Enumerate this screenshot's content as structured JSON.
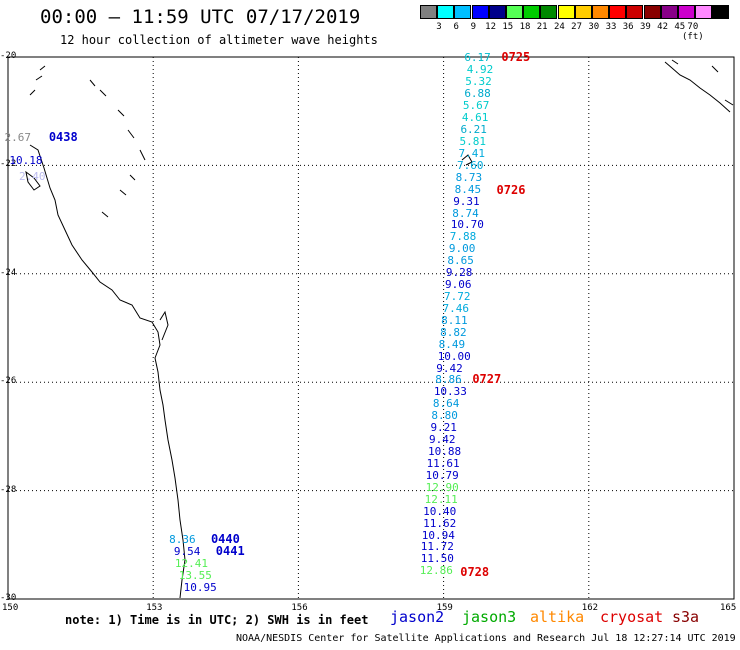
{
  "title": "00:00 – 11:59 UTC 07/17/2019",
  "subtitle": "12 hour collection of altimeter wave heights",
  "colorbar": {
    "colors": [
      "#808080",
      "#00ffff",
      "#00bfff",
      "#0000ff",
      "#00008b",
      "#55ff55",
      "#00cc00",
      "#008800",
      "#ffff00",
      "#ffcc00",
      "#ff8800",
      "#ff0000",
      "#cc0000",
      "#880000",
      "#880088",
      "#cc00cc",
      "#ff88ff",
      "#000000"
    ],
    "labels": [
      "3",
      "6",
      "9",
      "12",
      "15",
      "18",
      "21",
      "24",
      "27",
      "30",
      "33",
      "36",
      "39",
      "42",
      "45",
      "70 (ft)"
    ]
  },
  "map": {
    "lon_range": [
      150,
      165
    ],
    "lat_range": [
      -20,
      -30
    ],
    "lon_ticks": [
      "150",
      "153",
      "156",
      "159",
      "162",
      "165"
    ],
    "lat_ticks": [
      "-20",
      "-22",
      "-24",
      "-26",
      "-28",
      "-30"
    ]
  },
  "wave_heights": [
    {
      "v": "6.17",
      "lat": -20.0,
      "lon": 159.8,
      "c": "#00bbcc"
    },
    {
      "v": "4.92",
      "lat": -20.23,
      "lon": 159.85,
      "c": "#00cccc"
    },
    {
      "v": "5.32",
      "lat": -20.45,
      "lon": 159.82,
      "c": "#00cccc"
    },
    {
      "v": "6.88",
      "lat": -20.67,
      "lon": 159.8,
      "c": "#00aacc"
    },
    {
      "v": "5.67",
      "lat": -20.89,
      "lon": 159.77,
      "c": "#00cccc"
    },
    {
      "v": "4.61",
      "lat": -21.11,
      "lon": 159.75,
      "c": "#00cccc"
    },
    {
      "v": "6.21",
      "lat": -21.33,
      "lon": 159.72,
      "c": "#00aacc"
    },
    {
      "v": "5.81",
      "lat": -21.55,
      "lon": 159.7,
      "c": "#00cccc"
    },
    {
      "v": "7.41",
      "lat": -21.77,
      "lon": 159.68,
      "c": "#00aadd"
    },
    {
      "v": "7.60",
      "lat": -21.99,
      "lon": 159.65,
      "c": "#00aadd"
    },
    {
      "v": "8.73",
      "lat": -22.21,
      "lon": 159.62,
      "c": "#0099dd"
    },
    {
      "v": "8.45",
      "lat": -22.43,
      "lon": 159.6,
      "c": "#0099dd"
    },
    {
      "v": "9.31",
      "lat": -22.65,
      "lon": 159.57,
      "c": "#0000cc"
    },
    {
      "v": "8.74",
      "lat": -22.87,
      "lon": 159.55,
      "c": "#0099dd"
    },
    {
      "v": "10.70",
      "lat": -23.09,
      "lon": 159.52,
      "c": "#0000cc"
    },
    {
      "v": "7.88",
      "lat": -23.31,
      "lon": 159.5,
      "c": "#00aadd"
    },
    {
      "v": "9.00",
      "lat": -23.53,
      "lon": 159.48,
      "c": "#0099dd"
    },
    {
      "v": "8.65",
      "lat": -23.75,
      "lon": 159.45,
      "c": "#0099dd"
    },
    {
      "v": "9.28",
      "lat": -23.97,
      "lon": 159.42,
      "c": "#0000cc"
    },
    {
      "v": "9.06",
      "lat": -24.19,
      "lon": 159.4,
      "c": "#0000cc"
    },
    {
      "v": "7.72",
      "lat": -24.41,
      "lon": 159.38,
      "c": "#00aadd"
    },
    {
      "v": "7.46",
      "lat": -24.63,
      "lon": 159.35,
      "c": "#00aadd"
    },
    {
      "v": "8.11",
      "lat": -24.85,
      "lon": 159.32,
      "c": "#0099dd"
    },
    {
      "v": "8.82",
      "lat": -25.07,
      "lon": 159.3,
      "c": "#0099dd"
    },
    {
      "v": "8.49",
      "lat": -25.29,
      "lon": 159.27,
      "c": "#0099dd"
    },
    {
      "v": "10.00",
      "lat": -25.51,
      "lon": 159.25,
      "c": "#0000cc"
    },
    {
      "v": "9.42",
      "lat": -25.73,
      "lon": 159.22,
      "c": "#0000cc"
    },
    {
      "v": "8.86",
      "lat": -25.95,
      "lon": 159.2,
      "c": "#0099dd"
    },
    {
      "v": "10.33",
      "lat": -26.17,
      "lon": 159.17,
      "c": "#0000cc"
    },
    {
      "v": "8.64",
      "lat": -26.39,
      "lon": 159.15,
      "c": "#0099dd"
    },
    {
      "v": "8.80",
      "lat": -26.61,
      "lon": 159.12,
      "c": "#0099dd"
    },
    {
      "v": "9.21",
      "lat": -26.83,
      "lon": 159.1,
      "c": "#0000cc"
    },
    {
      "v": "9.42",
      "lat": -27.05,
      "lon": 159.07,
      "c": "#0000cc"
    },
    {
      "v": "10.88",
      "lat": -27.27,
      "lon": 159.05,
      "c": "#0000cc"
    },
    {
      "v": "11.61",
      "lat": -27.49,
      "lon": 159.02,
      "c": "#0000cc"
    },
    {
      "v": "10.79",
      "lat": -27.71,
      "lon": 159.0,
      "c": "#0000cc"
    },
    {
      "v": "12.90",
      "lat": -27.93,
      "lon": 159.0,
      "c": "#55ee55"
    },
    {
      "v": "12.11",
      "lat": -28.15,
      "lon": 158.98,
      "c": "#55ee55"
    },
    {
      "v": "10.40",
      "lat": -28.37,
      "lon": 158.95,
      "c": "#0000cc"
    },
    {
      "v": "11.62",
      "lat": -28.59,
      "lon": 158.95,
      "c": "#0000cc"
    },
    {
      "v": "10.94",
      "lat": -28.81,
      "lon": 158.92,
      "c": "#0000cc"
    },
    {
      "v": "11.72",
      "lat": -29.03,
      "lon": 158.9,
      "c": "#0000cc"
    },
    {
      "v": "11.50",
      "lat": -29.25,
      "lon": 158.9,
      "c": "#0000cc"
    },
    {
      "v": "12.86",
      "lat": -29.47,
      "lon": 158.88,
      "c": "#55ee55"
    },
    {
      "v": "2.67",
      "lat": -21.47,
      "lon": 150.3,
      "c": "#888888"
    },
    {
      "v": "10.18",
      "lat": -21.9,
      "lon": 150.4,
      "c": "#0000cc"
    },
    {
      "v": "2.40",
      "lat": -22.2,
      "lon": 150.6,
      "c": "#bbbbee"
    },
    {
      "v": "8.36",
      "lat": -28.9,
      "lon": 153.7,
      "c": "#0099dd"
    },
    {
      "v": "9.54",
      "lat": -29.12,
      "lon": 153.8,
      "c": "#0000cc"
    },
    {
      "v": "12.41",
      "lat": -29.34,
      "lon": 153.82,
      "c": "#55ee55"
    },
    {
      "v": "13.55",
      "lat": -29.56,
      "lon": 153.9,
      "c": "#55ee55"
    },
    {
      "v": "10.95",
      "lat": -29.78,
      "lon": 154.0,
      "c": "#0000cc"
    }
  ],
  "pass_times": [
    {
      "t": "0725",
      "lat": -20.0,
      "lon": 160.4,
      "c": "#dd0000"
    },
    {
      "t": "0726",
      "lat": -22.45,
      "lon": 160.3,
      "c": "#dd0000"
    },
    {
      "t": "0727",
      "lat": -25.95,
      "lon": 159.8,
      "c": "#dd0000"
    },
    {
      "t": "0728",
      "lat": -29.5,
      "lon": 159.55,
      "c": "#dd0000"
    },
    {
      "t": "0438",
      "lat": -21.47,
      "lon": 151.05,
      "c": "#0000cc"
    },
    {
      "t": "0440",
      "lat": -28.9,
      "lon": 154.4,
      "c": "#0000cc"
    },
    {
      "t": "0441",
      "lat": -29.12,
      "lon": 154.5,
      "c": "#0000cc"
    }
  ],
  "note": "note: 1) Time is in UTC; 2) SWH is in feet",
  "satellites": [
    {
      "name": "jason2",
      "color": "#0000cc"
    },
    {
      "name": "jason3",
      "color": "#00aa00"
    },
    {
      "name": "altika",
      "color": "#ff8800"
    },
    {
      "name": "cryosat",
      "color": "#dd0000"
    },
    {
      "name": "s3a",
      "color": "#880000"
    }
  ],
  "credit": "NOAA/NESDIS Center for Satellite Applications and Research   Jul 18 12:27:14 UTC 2019"
}
